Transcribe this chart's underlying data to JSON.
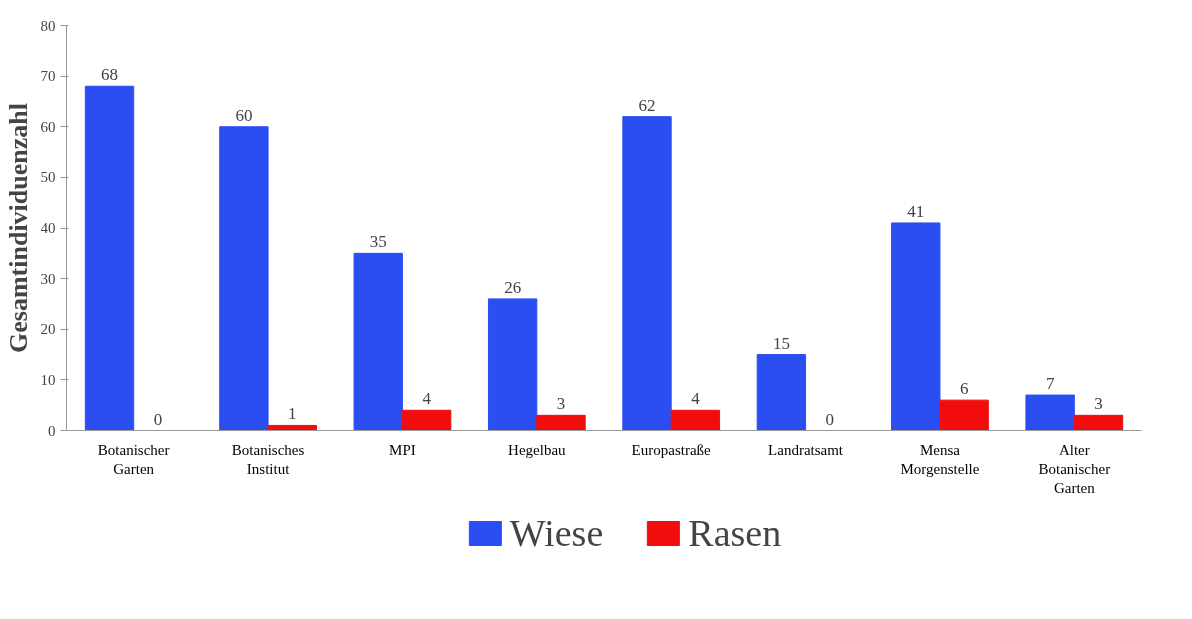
{
  "chart_data": {
    "type": "bar",
    "ylabel": "Gesamtindividuenzahl",
    "categories": [
      "Botanischer\nGarten",
      "Botanisches\nInstitut",
      "MPI",
      "Hegelbau",
      "Europastraße",
      "Landratsamt",
      "Mensa\nMorgenstelle",
      "Alter\nBotanischer\nGarten"
    ],
    "series": [
      {
        "name": "Wiese",
        "color": "#2b4ef2",
        "values": [
          68,
          60,
          35,
          26,
          62,
          15,
          41,
          7
        ]
      },
      {
        "name": "Rasen",
        "color": "#f20d0d",
        "values": [
          0,
          1,
          4,
          3,
          4,
          0,
          6,
          3
        ]
      }
    ],
    "ylim": [
      0,
      80
    ],
    "yticks": [
      0,
      10,
      20,
      30,
      40,
      50,
      60,
      70,
      80
    ],
    "grid": false,
    "legend": "bottom",
    "data_labels": true
  }
}
